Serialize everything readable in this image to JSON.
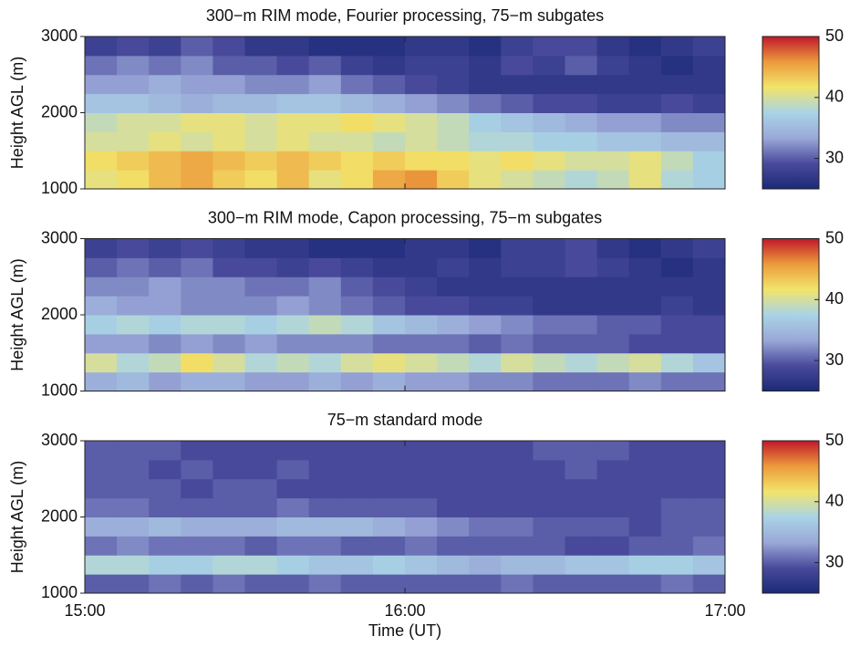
{
  "chart_data": [
    {
      "type": "heatmap",
      "title": "300−m RIM mode, Fourier processing, 75−m subgates",
      "ylabel": "Height AGL (m)",
      "x": [
        15.05,
        15.15,
        15.25,
        15.35,
        15.45,
        15.55,
        15.65,
        15.75,
        15.85,
        15.95,
        16.05,
        16.15,
        16.25,
        16.35,
        16.45,
        16.55,
        16.65,
        16.75,
        16.85,
        16.95
      ],
      "y": [
        1125,
        1375,
        1625,
        1875,
        2125,
        2375,
        2625,
        2875
      ],
      "z": [
        [
          41,
          42,
          44,
          45,
          43,
          42,
          44,
          41,
          42,
          45,
          46,
          43,
          41,
          40,
          39,
          38,
          39,
          41,
          38,
          37
        ],
        [
          42,
          43,
          44,
          45,
          44,
          43,
          44,
          43,
          42,
          43,
          42,
          42,
          41,
          42,
          41,
          40,
          40,
          41,
          39,
          37
        ],
        [
          40,
          40,
          41,
          40,
          41,
          40,
          41,
          40,
          40,
          39,
          40,
          39,
          38,
          38,
          37,
          37,
          36,
          36,
          35,
          35
        ],
        [
          39,
          40,
          40,
          41,
          41,
          40,
          41,
          41,
          42,
          41,
          40,
          39,
          37,
          36,
          35,
          34,
          33,
          33,
          32,
          32
        ],
        [
          36,
          36,
          35,
          34,
          35,
          35,
          36,
          36,
          35,
          34,
          33,
          32,
          31,
          30,
          29,
          29,
          28,
          28,
          29,
          28
        ],
        [
          33,
          33,
          34,
          33,
          33,
          32,
          32,
          33,
          31,
          30,
          29,
          28,
          27,
          27,
          27,
          27,
          27,
          27,
          27,
          27
        ],
        [
          31,
          32,
          31,
          32,
          30,
          30,
          29,
          30,
          28,
          27,
          28,
          28,
          27,
          29,
          28,
          30,
          28,
          27,
          26,
          27
        ],
        [
          28,
          29,
          28,
          30,
          29,
          27,
          27,
          26,
          26,
          26,
          27,
          27,
          26,
          28,
          29,
          29,
          27,
          26,
          27,
          28
        ]
      ],
      "xlim": [
        15,
        17
      ],
      "xticks": [
        15,
        16,
        17
      ],
      "ylim": [
        1000,
        3000
      ],
      "yticks": [
        1000,
        2000,
        3000
      ],
      "clim": [
        25,
        50
      ],
      "cticks": [
        30,
        40,
        50
      ],
      "colormap": [
        "#1b2a78",
        "#4a4a9c",
        "#9aa8d8",
        "#a9d4e6",
        "#f2e46a",
        "#ec9a3c",
        "#c0182a"
      ]
    },
    {
      "type": "heatmap",
      "title": "300−m RIM mode, Capon processing, 75−m subgates",
      "ylabel": "Height AGL (m)",
      "x": [
        15.05,
        15.15,
        15.25,
        15.35,
        15.45,
        15.55,
        15.65,
        15.75,
        15.85,
        15.95,
        16.05,
        16.15,
        16.25,
        16.35,
        16.45,
        16.55,
        16.65,
        16.75,
        16.85,
        16.95
      ],
      "y": [
        1125,
        1375,
        1625,
        1875,
        2125,
        2375,
        2625,
        2875
      ],
      "z": [
        [
          34,
          35,
          33,
          34,
          34,
          33,
          33,
          34,
          33,
          34,
          33,
          33,
          32,
          32,
          31,
          31,
          31,
          32,
          31,
          31
        ],
        [
          40,
          38,
          39,
          42,
          40,
          38,
          39,
          38,
          40,
          41,
          40,
          39,
          38,
          40,
          39,
          38,
          39,
          40,
          38,
          36
        ],
        [
          33,
          33,
          32,
          33,
          32,
          33,
          32,
          32,
          32,
          31,
          31,
          31,
          30,
          31,
          30,
          30,
          30,
          29,
          29,
          29
        ],
        [
          37,
          38,
          37,
          38,
          38,
          37,
          38,
          39,
          38,
          36,
          35,
          34,
          33,
          32,
          31,
          31,
          30,
          30,
          29,
          29
        ],
        [
          34,
          33,
          33,
          32,
          32,
          32,
          33,
          32,
          31,
          30,
          29,
          29,
          28,
          28,
          27,
          27,
          27,
          27,
          28,
          27
        ],
        [
          32,
          32,
          33,
          32,
          32,
          31,
          31,
          32,
          30,
          29,
          28,
          27,
          27,
          27,
          27,
          27,
          27,
          27,
          27,
          27
        ],
        [
          30,
          31,
          30,
          31,
          29,
          29,
          28,
          29,
          28,
          27,
          27,
          28,
          27,
          28,
          28,
          29,
          28,
          27,
          26,
          27
        ],
        [
          28,
          29,
          28,
          29,
          28,
          27,
          27,
          26,
          26,
          26,
          27,
          27,
          26,
          28,
          28,
          29,
          27,
          26,
          27,
          28
        ]
      ],
      "xlim": [
        15,
        17
      ],
      "xticks": [
        15,
        16,
        17
      ],
      "ylim": [
        1000,
        3000
      ],
      "yticks": [
        1000,
        2000,
        3000
      ],
      "clim": [
        25,
        50
      ],
      "cticks": [
        30,
        40,
        50
      ],
      "colormap": [
        "#1b2a78",
        "#4a4a9c",
        "#9aa8d8",
        "#a9d4e6",
        "#f2e46a",
        "#ec9a3c",
        "#c0182a"
      ]
    },
    {
      "type": "heatmap",
      "title": "75−m standard mode",
      "ylabel": "Height AGL (m)",
      "xlabel": "Time (UT)",
      "x": [
        15.05,
        15.15,
        15.25,
        15.35,
        15.45,
        15.55,
        15.65,
        15.75,
        15.85,
        15.95,
        16.05,
        16.15,
        16.25,
        16.35,
        16.45,
        16.55,
        16.65,
        16.75,
        16.85,
        16.95
      ],
      "y": [
        1125,
        1375,
        1625,
        1875,
        2125,
        2375,
        2625,
        2875
      ],
      "z": [
        [
          30,
          30,
          31,
          30,
          31,
          30,
          30,
          31,
          30,
          30,
          30,
          30,
          30,
          31,
          30,
          30,
          30,
          30,
          31,
          30
        ],
        [
          38,
          38,
          37,
          37,
          38,
          38,
          37,
          36,
          36,
          37,
          36,
          35,
          34,
          35,
          35,
          36,
          36,
          37,
          37,
          36
        ],
        [
          31,
          32,
          31,
          31,
          31,
          30,
          31,
          31,
          30,
          30,
          31,
          30,
          30,
          30,
          30,
          29,
          29,
          30,
          30,
          31
        ],
        [
          34,
          34,
          35,
          34,
          34,
          34,
          35,
          35,
          35,
          34,
          33,
          32,
          31,
          31,
          30,
          30,
          30,
          29,
          30,
          30
        ],
        [
          31,
          31,
          30,
          30,
          30,
          30,
          31,
          30,
          30,
          30,
          30,
          29,
          29,
          29,
          29,
          29,
          29,
          29,
          30,
          30
        ],
        [
          30,
          30,
          30,
          29,
          30,
          30,
          29,
          29,
          29,
          29,
          29,
          29,
          29,
          29,
          29,
          29,
          29,
          29,
          29,
          29
        ],
        [
          30,
          30,
          29,
          30,
          29,
          29,
          30,
          29,
          29,
          29,
          29,
          29,
          29,
          29,
          29,
          30,
          29,
          29,
          29,
          29
        ],
        [
          30,
          30,
          30,
          29,
          29,
          29,
          29,
          29,
          29,
          29,
          29,
          29,
          29,
          29,
          30,
          30,
          30,
          29,
          29,
          29
        ]
      ],
      "xlim": [
        15,
        17
      ],
      "xticks": [
        {
          "value": 15,
          "label": "15:00"
        },
        {
          "value": 16,
          "label": "16:00"
        },
        {
          "value": 17,
          "label": "17:00"
        }
      ],
      "ylim": [
        1000,
        3000
      ],
      "yticks": [
        1000,
        2000,
        3000
      ],
      "clim": [
        25,
        50
      ],
      "cticks": [
        30,
        40,
        50
      ],
      "colormap": [
        "#1b2a78",
        "#4a4a9c",
        "#9aa8d8",
        "#a9d4e6",
        "#f2e46a",
        "#ec9a3c",
        "#c0182a"
      ]
    }
  ]
}
